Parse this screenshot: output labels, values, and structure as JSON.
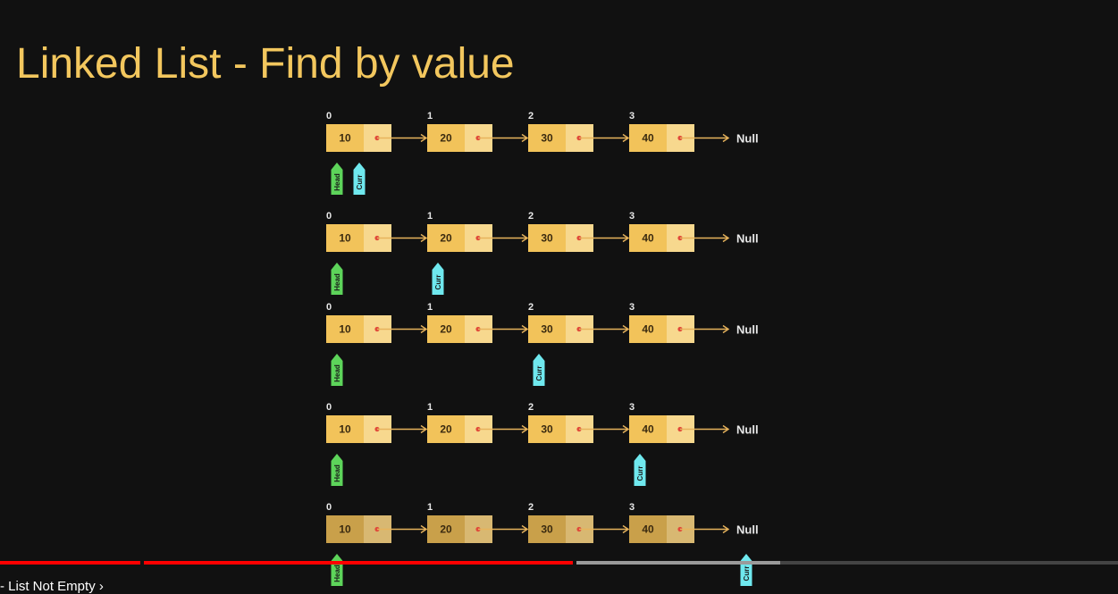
{
  "title": "Linked List - Find by value",
  "diagram": {
    "nodes": [
      {
        "index": "0",
        "value": "10"
      },
      {
        "index": "1",
        "value": "20"
      },
      {
        "index": "2",
        "value": "30"
      },
      {
        "index": "3",
        "value": "40"
      }
    ],
    "null_label": "Null",
    "head_label": "Head",
    "curr_label": "Curr",
    "steps": [
      {
        "curr_at": 0
      },
      {
        "curr_at": 1
      },
      {
        "curr_at": 2
      },
      {
        "curr_at": 3
      },
      {
        "curr_at": 4
      }
    ]
  },
  "colors": {
    "background": "#111111",
    "title": "#f3c75e",
    "node_fill": "#f2c35a",
    "node_pointer_fill": "#f7d88e",
    "node_dim_fill": "#c9a04a",
    "node_pointer_dim_fill": "#d8b872",
    "arrow": "#e7b35c",
    "dot": "#e0493a",
    "head_marker": "#5dd45a",
    "curr_marker": "#6fe8ee",
    "progress_played": "#ff0000",
    "progress_buffered": "#9a9a9a",
    "progress_bg": "#444444"
  },
  "player": {
    "chapter_label": "- List Not Empty",
    "chapter_chevron_icon": "chevron-right-icon"
  }
}
